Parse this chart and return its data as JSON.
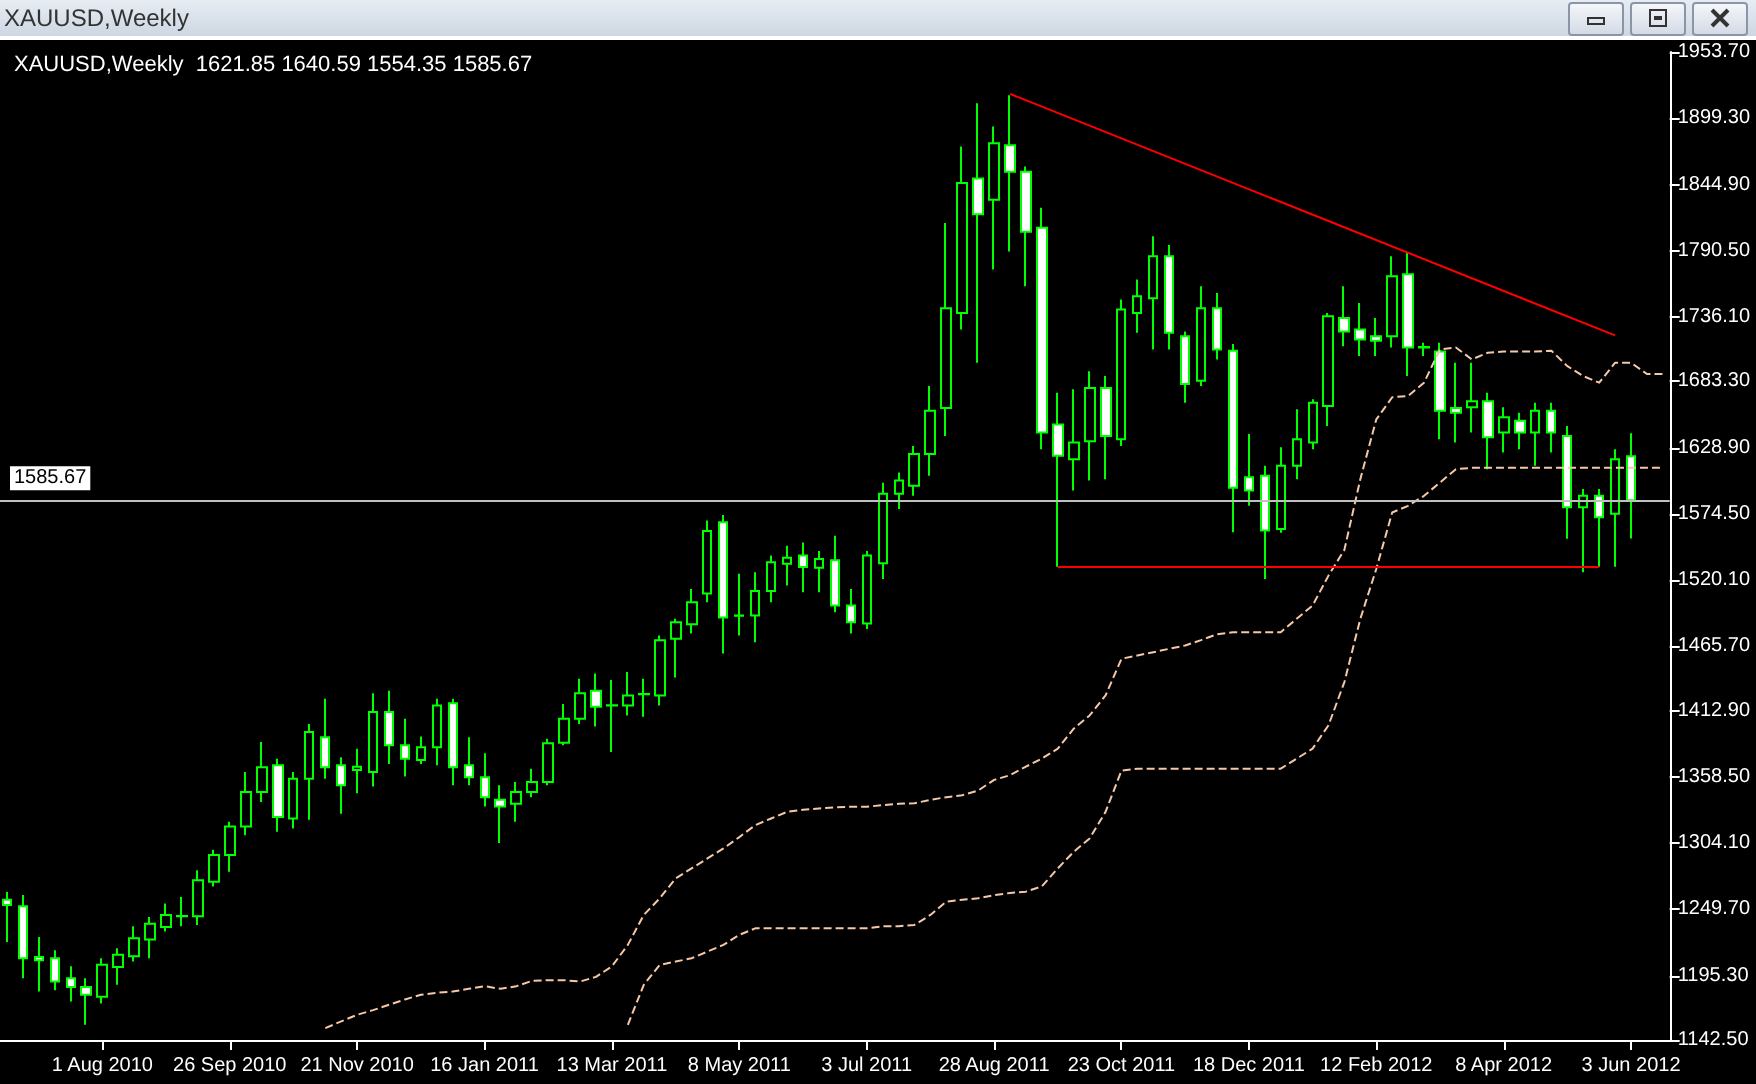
{
  "chart_data": {
    "type": "candlestick",
    "title": "XAUUSD,Weekly",
    "subtitle": "XAUUSD,Weekly  1621.85 1640.59 1554.35 1585.67",
    "xlim": [
      "2010-06-17",
      "2012-06-20"
    ],
    "xticks": [
      {
        "value": "2010-08-01",
        "label": "1 Aug 2010"
      },
      {
        "value": "2010-09-26",
        "label": "26 Sep 2010"
      },
      {
        "value": "2010-11-21",
        "label": "21 Nov 2010"
      },
      {
        "value": "2011-01-16",
        "label": "16 Jan 2011"
      },
      {
        "value": "2011-03-13",
        "label": "13 Mar 2011"
      },
      {
        "value": "2011-05-08",
        "label": "8 May 2011"
      },
      {
        "value": "2011-07-03",
        "label": "3 Jul 2011"
      },
      {
        "value": "2011-08-28",
        "label": "28 Aug 2011"
      },
      {
        "value": "2011-10-23",
        "label": "23 Oct 2011"
      },
      {
        "value": "2011-12-18",
        "label": "18 Dec 2011"
      },
      {
        "value": "2012-02-12",
        "label": "12 Feb 2012"
      },
      {
        "value": "2012-04-08",
        "label": "8 Apr 2012"
      },
      {
        "value": "2012-06-03",
        "label": "3 Jun 2012"
      }
    ],
    "ylim": [
      1142.5,
      1953.7
    ],
    "yticks": [
      {
        "value": 1142.5,
        "label": "1142.50"
      },
      {
        "value": 1195.3,
        "label": "1195.30"
      },
      {
        "value": 1249.7,
        "label": "1249.70"
      },
      {
        "value": 1304.1,
        "label": "1304.10"
      },
      {
        "value": 1358.5,
        "label": "1358.50"
      },
      {
        "value": 1412.9,
        "label": "1412.90"
      },
      {
        "value": 1465.7,
        "label": "1465.70"
      },
      {
        "value": 1520.1,
        "label": "1520.10"
      },
      {
        "value": 1574.5,
        "label": "1574.50"
      },
      {
        "value": 1628.9,
        "label": "1628.90"
      },
      {
        "value": 1683.3,
        "label": "1683.30"
      },
      {
        "value": 1736.1,
        "label": "1736.10"
      },
      {
        "value": 1790.5,
        "label": "1790.50"
      },
      {
        "value": 1844.9,
        "label": "1844.90"
      },
      {
        "value": 1899.3,
        "label": "1899.30"
      },
      {
        "value": 1953.7,
        "label": "1953.70"
      }
    ],
    "ref_lines": [
      {
        "axis": "y",
        "value": 1585.67,
        "label": "1585.67",
        "color": "#c0c0c0"
      }
    ],
    "series": [
      {
        "type": "line",
        "color": "#f5c8a8",
        "line_style": "dashed",
        "x": [
          "2010-11-07",
          "2010-11-14",
          "2010-11-21",
          "2010-11-28",
          "2010-12-05",
          "2010-12-12",
          "2010-12-19",
          "2010-12-26",
          "2011-01-02",
          "2011-01-09",
          "2011-01-16",
          "2011-01-23",
          "2011-01-30",
          "2011-02-06",
          "2011-02-13",
          "2011-02-20",
          "2011-02-27",
          "2011-03-06",
          "2011-03-13",
          "2011-03-20",
          "2011-03-27",
          "2011-04-03",
          "2011-04-10",
          "2011-04-17",
          "2011-04-24",
          "2011-05-01",
          "2011-05-08",
          "2011-05-15",
          "2011-05-22",
          "2011-05-29",
          "2011-06-05",
          "2011-06-12",
          "2011-06-19",
          "2011-06-26",
          "2011-07-03",
          "2011-07-10",
          "2011-07-17",
          "2011-07-24",
          "2011-07-31",
          "2011-08-07",
          "2011-08-14",
          "2011-08-21",
          "2011-08-28",
          "2011-09-04",
          "2011-09-11",
          "2011-09-18",
          "2011-09-25",
          "2011-10-02",
          "2011-10-09",
          "2011-10-16",
          "2011-10-23",
          "2011-10-30",
          "2011-11-06",
          "2011-11-13",
          "2011-11-20",
          "2011-11-27",
          "2011-12-04",
          "2011-12-11",
          "2011-12-18",
          "2011-12-25",
          "2012-01-01",
          "2012-01-08",
          "2012-01-15",
          "2012-01-22",
          "2012-01-29",
          "2012-02-05",
          "2012-02-12",
          "2012-02-19",
          "2012-02-26",
          "2012-03-04",
          "2012-03-11",
          "2012-03-18",
          "2012-03-25",
          "2012-04-01",
          "2012-04-08",
          "2012-04-15",
          "2012-04-22",
          "2012-04-29",
          "2012-05-06",
          "2012-05-13",
          "2012-05-20",
          "2012-05-27",
          "2012-06-03",
          "2012-06-10",
          "2012-06-17"
        ],
        "values": [
          1152.3,
          1157.8,
          1163.2,
          1167,
          1171.4,
          1175.8,
          1179.6,
          1181.3,
          1182.3,
          1184.5,
          1186.7,
          1184.5,
          1186.7,
          1191.1,
          1191.6,
          1191.6,
          1190.5,
          1194.3,
          1203,
          1220.6,
          1245.2,
          1258.8,
          1275.2,
          1283.4,
          1291.6,
          1299.8,
          1309.1,
          1318.9,
          1324.4,
          1329.8,
          1331.5,
          1332.6,
          1333.5,
          1334,
          1334,
          1335.3,
          1336.4,
          1336.9,
          1339.7,
          1341.9,
          1343.5,
          1347.3,
          1356.1,
          1359.9,
          1367,
          1373.5,
          1381.7,
          1398.1,
          1409,
          1425.4,
          1455.5,
          1458.2,
          1460.9,
          1463.7,
          1466.4,
          1470.8,
          1475.7,
          1477.3,
          1477.3,
          1477.3,
          1477.3,
          1488.3,
          1499.2,
          1523.8,
          1545,
          1603,
          1652,
          1670.2,
          1671.3,
          1682.2,
          1709.5,
          1711.1,
          1701.3,
          1706.8,
          1707.8,
          1707.8,
          1707.8,
          1708.4,
          1695.8,
          1687.6,
          1682.2,
          1698.6,
          1698.6,
          1689.3,
          1689.3
        ]
      },
      {
        "type": "line",
        "color": "#f5c8a8",
        "line_style": "dashed",
        "x": [
          "2011-03-20",
          "2011-03-27",
          "2011-04-03",
          "2011-04-10",
          "2011-04-17",
          "2011-04-24",
          "2011-05-01",
          "2011-05-08",
          "2011-05-15",
          "2011-05-22",
          "2011-05-29",
          "2011-06-05",
          "2011-06-12",
          "2011-06-19",
          "2011-06-26",
          "2011-07-03",
          "2011-07-10",
          "2011-07-17",
          "2011-07-24",
          "2011-07-31",
          "2011-08-07",
          "2011-08-14",
          "2011-08-21",
          "2011-08-28",
          "2011-09-04",
          "2011-09-11",
          "2011-09-18",
          "2011-09-25",
          "2011-10-02",
          "2011-10-09",
          "2011-10-16",
          "2011-10-23",
          "2011-10-30",
          "2011-11-06",
          "2011-11-13",
          "2011-11-20",
          "2011-11-27",
          "2011-12-04",
          "2011-12-11",
          "2011-12-18",
          "2011-12-25",
          "2012-01-01",
          "2012-01-08",
          "2012-01-15",
          "2012-01-22",
          "2012-01-29",
          "2012-02-05",
          "2012-02-12",
          "2012-02-19",
          "2012-02-26",
          "2012-03-04",
          "2012-03-11",
          "2012-03-18",
          "2012-03-25",
          "2012-04-01",
          "2012-04-08",
          "2012-04-15",
          "2012-04-22",
          "2012-04-29",
          "2012-05-06",
          "2012-05-13",
          "2012-05-20",
          "2012-05-27",
          "2012-06-03",
          "2012-06-10",
          "2012-06-17"
        ],
        "values": [
          1155,
          1187.8,
          1204.2,
          1206.9,
          1209.6,
          1215.1,
          1220.6,
          1228.8,
          1234.2,
          1234.2,
          1234.2,
          1234.2,
          1234.2,
          1234.2,
          1234.2,
          1234.2,
          1235.9,
          1235.9,
          1237,
          1245.2,
          1256.1,
          1257.7,
          1258.8,
          1261.5,
          1263.2,
          1264.3,
          1268.6,
          1283.4,
          1297,
          1308,
          1329.8,
          1363.7,
          1365.3,
          1365.3,
          1365.3,
          1365.3,
          1365.3,
          1365.3,
          1365.3,
          1365.3,
          1365.3,
          1365.3,
          1373.5,
          1381.7,
          1400.9,
          1436.4,
          1488.3,
          1529.2,
          1575.6,
          1581.1,
          1589.3,
          1600.2,
          1611.2,
          1612.3,
          1612.3,
          1612.3,
          1612.3,
          1612.3,
          1612.3,
          1612.3,
          1612.3,
          1612.3,
          1612.3,
          1612.3,
          1612.3,
          1612.3
        ]
      },
      {
        "type": "line",
        "color": "#ff0000",
        "x": [
          "2011-09-04",
          "2012-05-27"
        ],
        "values": [
          1919.3,
          1721
        ]
      },
      {
        "type": "line",
        "color": "#ff0000",
        "x": [
          "2011-09-25",
          "2012-05-20"
        ],
        "values": [
          1530.9,
          1530.9
        ]
      },
      {
        "color": "#00ff00",
        "x": [
          "2010-06-20",
          "2010-06-27",
          "2010-07-04",
          "2010-07-11",
          "2010-07-18",
          "2010-07-25",
          "2010-08-01",
          "2010-08-08",
          "2010-08-15",
          "2010-08-22",
          "2010-08-29",
          "2010-09-05",
          "2010-09-12",
          "2010-09-19",
          "2010-09-26",
          "2010-10-03",
          "2010-10-10",
          "2010-10-17",
          "2010-10-24",
          "2010-10-31",
          "2010-11-07",
          "2010-11-14",
          "2010-11-21",
          "2010-11-28",
          "2010-12-05",
          "2010-12-12",
          "2010-12-19",
          "2010-12-26",
          "2011-01-02",
          "2011-01-09",
          "2011-01-16",
          "2011-01-23",
          "2011-01-30",
          "2011-02-06",
          "2011-02-13",
          "2011-02-20",
          "2011-02-27",
          "2011-03-06",
          "2011-03-13",
          "2011-03-20",
          "2011-03-27",
          "2011-04-03",
          "2011-04-10",
          "2011-04-17",
          "2011-04-24",
          "2011-05-01",
          "2011-05-08",
          "2011-05-15",
          "2011-05-22",
          "2011-05-29",
          "2011-06-05",
          "2011-06-12",
          "2011-06-19",
          "2011-06-26",
          "2011-07-03",
          "2011-07-10",
          "2011-07-17",
          "2011-07-24",
          "2011-07-31",
          "2011-08-07",
          "2011-08-14",
          "2011-08-21",
          "2011-08-28",
          "2011-09-04",
          "2011-09-11",
          "2011-09-18",
          "2011-09-25",
          "2011-10-02",
          "2011-10-09",
          "2011-10-16",
          "2011-10-23",
          "2011-10-30",
          "2011-11-06",
          "2011-11-13",
          "2011-11-20",
          "2011-11-27",
          "2011-12-04",
          "2011-12-11",
          "2011-12-18",
          "2011-12-25",
          "2012-01-01",
          "2012-01-08",
          "2012-01-15",
          "2012-01-22",
          "2012-01-29",
          "2012-02-05",
          "2012-02-12",
          "2012-02-19",
          "2012-02-26",
          "2012-03-04",
          "2012-03-11",
          "2012-03-18",
          "2012-03-25",
          "2012-04-01",
          "2012-04-08",
          "2012-04-15",
          "2012-04-22",
          "2012-04-29",
          "2012-05-06",
          "2012-05-13",
          "2012-05-20",
          "2012-05-27",
          "2012-06-03"
        ],
        "ohlc": [
          [
            1257.7,
            1264,
            1223,
            1253.3
          ],
          [
            1252.3,
            1261.5,
            1193.2,
            1209.6
          ],
          [
            1210.7,
            1227,
            1182.3,
            1208
          ],
          [
            1209.6,
            1216.2,
            1183.4,
            1190.5
          ],
          [
            1193.2,
            1203,
            1174.1,
            1186.1
          ],
          [
            1186.1,
            1193.2,
            1155,
            1179.6
          ],
          [
            1178,
            1209.6,
            1172.5,
            1204.2
          ],
          [
            1202.5,
            1217.8,
            1187.8,
            1212.4
          ],
          [
            1211.3,
            1235.9,
            1207,
            1226
          ],
          [
            1225,
            1243.5,
            1209.6,
            1238
          ],
          [
            1235.3,
            1254.5,
            1231.5,
            1245.2
          ],
          [
            1244.1,
            1259.9,
            1235.9,
            1244.3
          ],
          [
            1244.1,
            1281.8,
            1237,
            1273.6
          ],
          [
            1272.5,
            1298.7,
            1268.6,
            1294.3
          ],
          [
            1294.3,
            1321.6,
            1280.7,
            1317.8
          ],
          [
            1317.8,
            1362.6,
            1310.7,
            1346.2
          ],
          [
            1346.2,
            1387.2,
            1338,
            1366.4
          ],
          [
            1368.1,
            1373.5,
            1313.4,
            1325.5
          ],
          [
            1324.4,
            1362.6,
            1316.2,
            1357.1
          ],
          [
            1357.1,
            1402,
            1323.3,
            1395.4
          ],
          [
            1391,
            1422.7,
            1357.1,
            1366.4
          ],
          [
            1368.1,
            1374.6,
            1328.2,
            1351.7
          ],
          [
            1364.1,
            1381.7,
            1345.1,
            1366.8
          ],
          [
            1362.6,
            1427.1,
            1350.6,
            1411.8
          ],
          [
            1411.8,
            1429.3,
            1369.2,
            1384.5
          ],
          [
            1384.5,
            1406.3,
            1358.8,
            1373.5
          ],
          [
            1372.4,
            1391.6,
            1369.2,
            1382.8
          ],
          [
            1382.8,
            1422.7,
            1368.1,
            1417.2
          ],
          [
            1418.9,
            1422.7,
            1351.7,
            1366.4
          ],
          [
            1368.1,
            1391,
            1351.7,
            1358.2
          ],
          [
            1358.2,
            1377.9,
            1334.2,
            1341.9
          ],
          [
            1339.7,
            1351.7,
            1304.2,
            1334.2
          ],
          [
            1336.4,
            1354.4,
            1321.6,
            1346.2
          ],
          [
            1346.2,
            1365.3,
            1341.9,
            1354.4
          ],
          [
            1354.4,
            1389.9,
            1351.7,
            1386.1
          ],
          [
            1386.6,
            1418.3,
            1384.5,
            1406.3
          ],
          [
            1406.3,
            1439.1,
            1402,
            1427.1
          ],
          [
            1429.3,
            1443.5,
            1399.8,
            1416.1
          ],
          [
            1417.2,
            1438,
            1379,
            1417.4
          ],
          [
            1417.2,
            1444.6,
            1409,
            1425.4
          ],
          [
            1426.4,
            1439.1,
            1407.9,
            1426.6
          ],
          [
            1425.4,
            1474.6,
            1417.2,
            1470.8
          ],
          [
            1471.9,
            1488.3,
            1440.2,
            1485.5
          ],
          [
            1483.9,
            1512.8,
            1476.2,
            1501.9
          ],
          [
            1509,
            1569.1,
            1501.9,
            1560.4
          ],
          [
            1567.5,
            1573.5,
            1459.8,
            1489.4
          ],
          [
            1490.9,
            1525.4,
            1474.6,
            1491.1
          ],
          [
            1491,
            1526.5,
            1469.1,
            1511.2
          ],
          [
            1511.2,
            1540.2,
            1501.9,
            1534.7
          ],
          [
            1533.6,
            1548.3,
            1515.6,
            1538.5
          ],
          [
            1540.2,
            1551,
            1510.1,
            1530.9
          ],
          [
            1530.3,
            1544,
            1510.1,
            1537.4
          ],
          [
            1536.3,
            1556.5,
            1493.7,
            1499.2
          ],
          [
            1499.2,
            1512.8,
            1476.2,
            1485.5
          ],
          [
            1484.4,
            1544,
            1480,
            1540.2
          ],
          [
            1534,
            1600,
            1521,
            1591
          ],
          [
            1591,
            1608.4,
            1578.4,
            1601.9
          ],
          [
            1597.5,
            1630.3,
            1589.3,
            1623.7
          ],
          [
            1623.7,
            1679.4,
            1605.7,
            1659.2
          ],
          [
            1661.4,
            1813.3,
            1638.5,
            1743.4
          ],
          [
            1739.5,
            1876.1,
            1725.9,
            1846.1
          ],
          [
            1849.9,
            1911.6,
            1698.6,
            1820.4
          ],
          [
            1832.4,
            1892.5,
            1775.1,
            1878.8
          ],
          [
            1877.2,
            1918.2,
            1789.8,
            1855.3
          ],
          [
            1855.3,
            1859.7,
            1761.4,
            1806.2
          ],
          [
            1809.5,
            1825.9,
            1627.5,
            1641.2
          ],
          [
            1647.8,
            1674,
            1531,
            1622.1
          ],
          [
            1619.3,
            1676.7,
            1593.7,
            1633
          ],
          [
            1634.1,
            1691.5,
            1601.9,
            1677.8
          ],
          [
            1677.8,
            1687.6,
            1603,
            1638.5
          ],
          [
            1635.7,
            1750.5,
            1630.3,
            1742.3
          ],
          [
            1739.5,
            1766.9,
            1723.2,
            1753.2
          ],
          [
            1751.6,
            1802.4,
            1709.5,
            1786
          ],
          [
            1786,
            1795.3,
            1709.5,
            1723.2
          ],
          [
            1720.4,
            1724.2,
            1665.8,
            1681.1
          ],
          [
            1683.8,
            1761.4,
            1679.4,
            1743.4
          ],
          [
            1743.4,
            1755.9,
            1701.3,
            1709.5
          ],
          [
            1708.4,
            1713.9,
            1559.3,
            1595.9
          ],
          [
            1604.6,
            1640.1,
            1581.1,
            1593.7
          ],
          [
            1605.7,
            1613.9,
            1521,
            1560.9
          ],
          [
            1562,
            1629.2,
            1559,
            1613.9
          ],
          [
            1613.9,
            1660.3,
            1603,
            1635.7
          ],
          [
            1633,
            1668.5,
            1627.5,
            1665.8
          ],
          [
            1663.1,
            1739.5,
            1646.7,
            1736.8
          ],
          [
            1735.2,
            1761.4,
            1712.2,
            1724.2
          ],
          [
            1725.9,
            1747.7,
            1704.1,
            1717.7
          ],
          [
            1720.4,
            1735.2,
            1704.1,
            1716.6
          ],
          [
            1720.4,
            1786,
            1711.1,
            1769.6
          ],
          [
            1771.2,
            1788.7,
            1687.6,
            1711.1
          ],
          [
            1711.4,
            1715,
            1704.1,
            1711.1
          ],
          [
            1707.8,
            1715,
            1635.7,
            1659.2
          ],
          [
            1661.4,
            1698.6,
            1633,
            1657.6
          ],
          [
            1662,
            1698.6,
            1641.2,
            1667
          ],
          [
            1667,
            1674,
            1611.2,
            1637.4
          ],
          [
            1641.2,
            1662,
            1624.8,
            1653.8
          ],
          [
            1651,
            1657.6,
            1627.5,
            1641.2
          ],
          [
            1641.2,
            1665.8,
            1613.9,
            1659.2
          ],
          [
            1659.2,
            1665.8,
            1624.8,
            1641.2
          ],
          [
            1638.5,
            1646.7,
            1554,
            1580
          ],
          [
            1580,
            1594.8,
            1526.5,
            1589.3
          ],
          [
            1589.3,
            1594.8,
            1531,
            1571.8
          ],
          [
            1574.5,
            1627.5,
            1531,
            1619.3
          ],
          [
            1621.85,
            1640.59,
            1554.35,
            1585.67
          ]
        ]
      }
    ]
  }
}
